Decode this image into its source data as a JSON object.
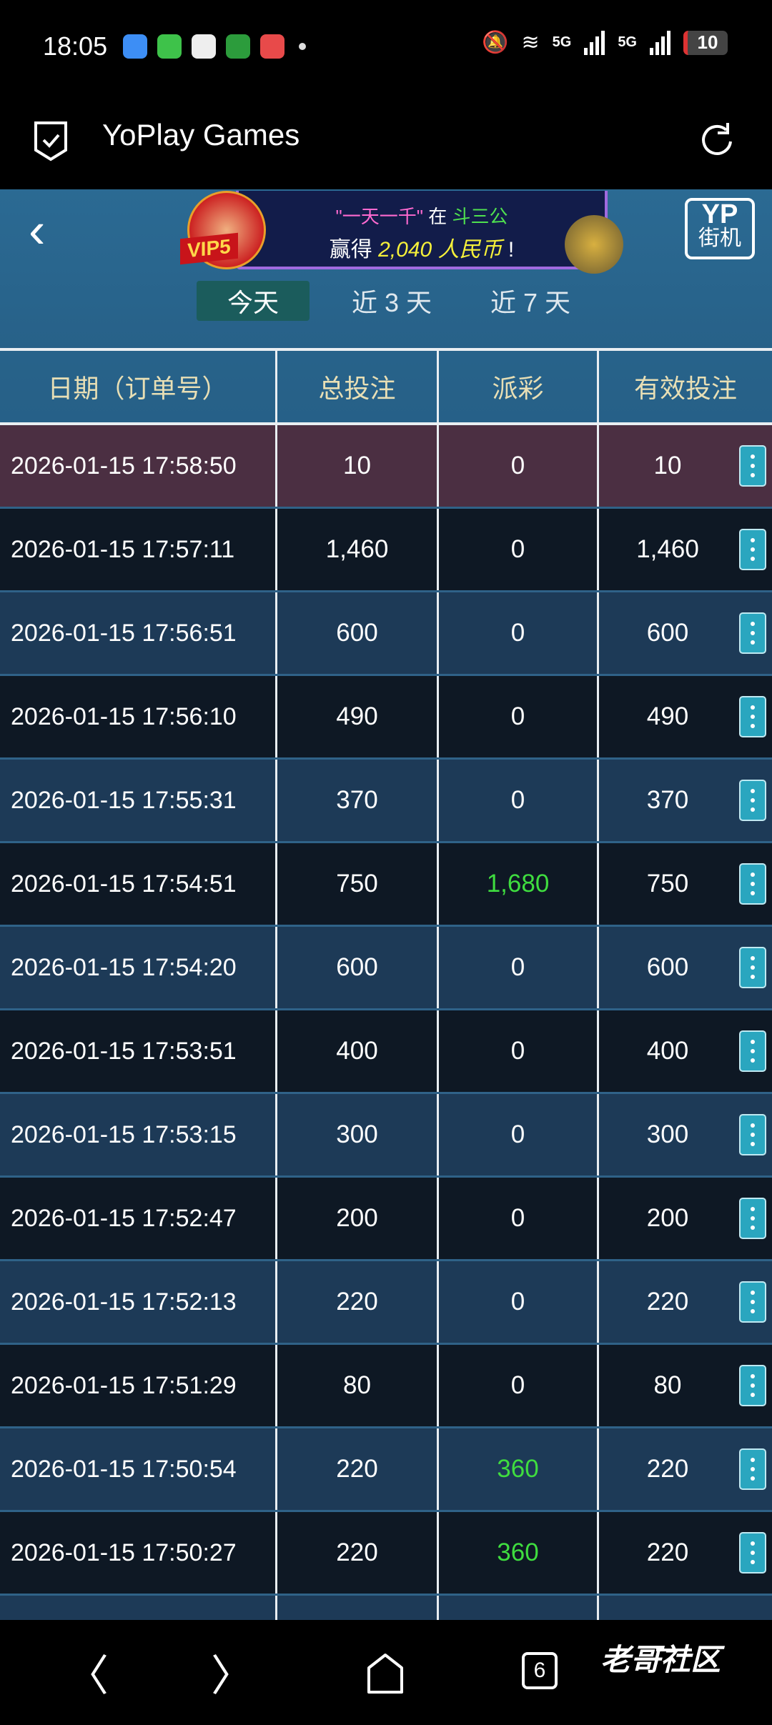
{
  "status_bar": {
    "time": "18:05",
    "battery": "10",
    "network_1": "5G",
    "network_2": "5G"
  },
  "browser": {
    "title": "YoPlay Games"
  },
  "banner": {
    "quote": "\"一天一千\"",
    "at": "在",
    "game": "斗三公",
    "won": "赢得",
    "amount": "2,040 人民币",
    "exclaim": "!",
    "vip_label": "VIP5",
    "brand_top": "YP",
    "brand_bottom": "街机"
  },
  "tabs": [
    {
      "label": "今天",
      "active": true
    },
    {
      "label": "近 3 天"
    },
    {
      "label": "近 7 天"
    }
  ],
  "table": {
    "headers": [
      "日期（订单号）",
      "总投注",
      "派彩",
      "有效投注"
    ],
    "rows": [
      {
        "date": "2026-01-15 17:58:50",
        "bet": "10",
        "payout": "0",
        "valid": "10"
      },
      {
        "date": "2026-01-15 17:57:11",
        "bet": "1,460",
        "payout": "0",
        "valid": "1,460"
      },
      {
        "date": "2026-01-15 17:56:51",
        "bet": "600",
        "payout": "0",
        "valid": "600"
      },
      {
        "date": "2026-01-15 17:56:10",
        "bet": "490",
        "payout": "0",
        "valid": "490"
      },
      {
        "date": "2026-01-15 17:55:31",
        "bet": "370",
        "payout": "0",
        "valid": "370"
      },
      {
        "date": "2026-01-15 17:54:51",
        "bet": "750",
        "payout": "1,680",
        "valid": "750"
      },
      {
        "date": "2026-01-15 17:54:20",
        "bet": "600",
        "payout": "0",
        "valid": "600"
      },
      {
        "date": "2026-01-15 17:53:51",
        "bet": "400",
        "payout": "0",
        "valid": "400"
      },
      {
        "date": "2026-01-15 17:53:15",
        "bet": "300",
        "payout": "0",
        "valid": "300"
      },
      {
        "date": "2026-01-15 17:52:47",
        "bet": "200",
        "payout": "0",
        "valid": "200"
      },
      {
        "date": "2026-01-15 17:52:13",
        "bet": "220",
        "payout": "0",
        "valid": "220"
      },
      {
        "date": "2026-01-15 17:51:29",
        "bet": "80",
        "payout": "0",
        "valid": "80"
      },
      {
        "date": "2026-01-15 17:50:54",
        "bet": "220",
        "payout": "360",
        "valid": "220"
      },
      {
        "date": "2026-01-15 17:50:27",
        "bet": "220",
        "payout": "360",
        "valid": "220"
      }
    ]
  },
  "nav": {
    "tabs_count": "6",
    "watermark": "老哥社区"
  },
  "colors": {
    "header_text": "#e8dfb5",
    "win": "#3fdd3f",
    "highlight_row": "#4b2f42",
    "kebab": "#2aa6bf"
  }
}
